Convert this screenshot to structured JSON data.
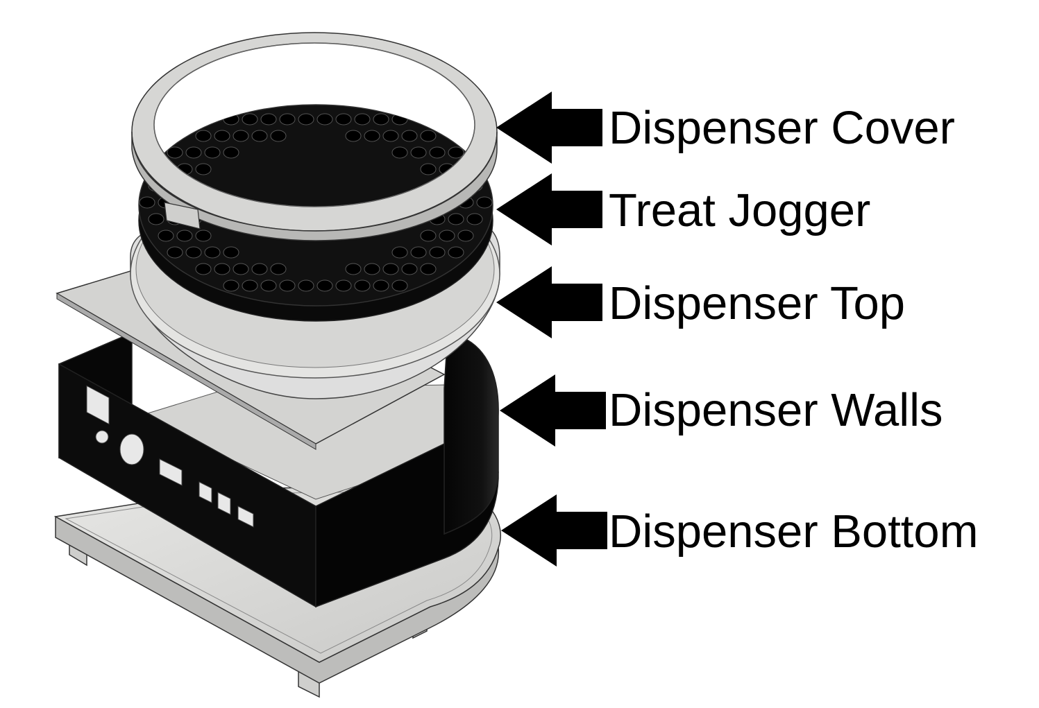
{
  "diagram": {
    "labels": [
      "Dispenser Cover",
      "Treat Jogger",
      "Dispenser Top",
      "Dispenser Walls",
      "Dispenser Bottom"
    ],
    "colors": {
      "part_light": "#dcdcda",
      "part_light_dark": "#b9b9b7",
      "part_black": "#0a0a0a",
      "edge": "#2a2a2a",
      "arrow": "#000000"
    }
  }
}
